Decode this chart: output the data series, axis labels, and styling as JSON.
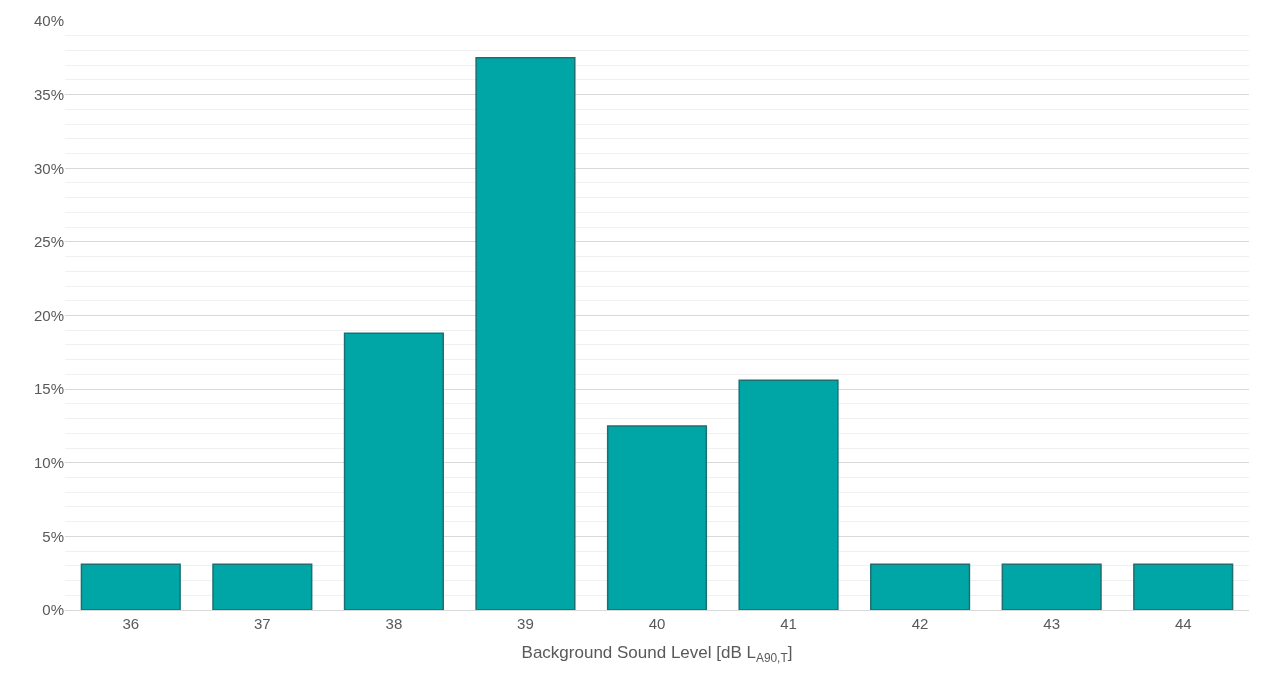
{
  "chart_data": {
    "type": "bar",
    "xlabel": "Background Sound Level [dB L$_{A90,T}$]",
    "categories": [
      "36",
      "37",
      "38",
      "39",
      "40",
      "41",
      "42",
      "43",
      "44"
    ],
    "values": [
      3.1,
      3.1,
      18.8,
      37.5,
      12.5,
      15.6,
      3.1,
      3.1,
      3.1
    ],
    "color": "#00a6a6",
    "ylim": [
      0,
      40
    ],
    "yticks": [
      {
        "value": 0,
        "label": "0%"
      },
      {
        "value": 5,
        "label": "5%"
      },
      {
        "value": 10,
        "label": "10%"
      },
      {
        "value": 15,
        "label": "15%"
      },
      {
        "value": 20,
        "label": "20%"
      },
      {
        "value": 25,
        "label": "25%"
      },
      {
        "value": 30,
        "label": "30%"
      },
      {
        "value": 35,
        "label": "35%"
      },
      {
        "value": 40,
        "label": "40%"
      }
    ],
    "grid": "y"
  }
}
